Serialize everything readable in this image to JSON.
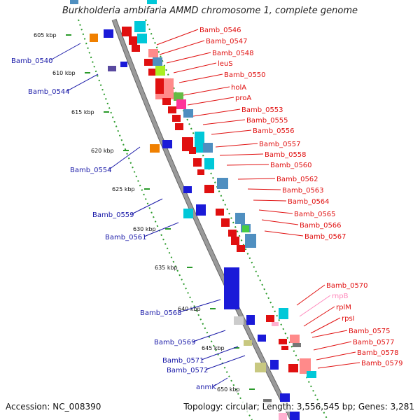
{
  "title": "Burkholderia ambifaria AMMD chromosome 1, complete genome",
  "footer": {
    "accession": "Accession: NC_008390",
    "summary": "Topology: circular; Length: 3,556,545 bp; Genes: 3,281"
  },
  "colors": {
    "left_label": "#1a1aa8",
    "right_label": "#e01010",
    "rnpB_label": "#ff88bb",
    "backbone": "#9a9a9a",
    "track_dots": "#2a9a2a"
  },
  "scale_ticks": [
    {
      "label": "605 kbp",
      "kbp": 605
    },
    {
      "label": "610 kbp",
      "kbp": 610
    },
    {
      "label": "615 kbp",
      "kbp": 615
    },
    {
      "label": "620 kbp",
      "kbp": 620
    },
    {
      "label": "625 kbp",
      "kbp": 625
    },
    {
      "label": "630 kbp",
      "kbp": 630
    },
    {
      "label": "635 kbp",
      "kbp": 635
    },
    {
      "label": "640 kbp",
      "kbp": 640
    },
    {
      "label": "645 kbp",
      "kbp": 645
    },
    {
      "label": "650 kbp",
      "kbp": 650
    }
  ],
  "left_labels": [
    "Bamb_0540",
    "Bamb_0544",
    "Bamb_0554",
    "Bamb_0559",
    "Bamb_0561",
    "Bamb_0568",
    "Bamb_0569",
    "Bamb_0571",
    "Bamb_0572",
    "anmK"
  ],
  "right_labels": [
    "Bamb_0546",
    "Bamb_0547",
    "Bamb_0548",
    "leuS",
    "Bamb_0550",
    "holA",
    "proA",
    "Bamb_0553",
    "Bamb_0555",
    "Bamb_0556",
    "Bamb_0557",
    "Bamb_0558",
    "Bamb_0560",
    "Bamb_0562",
    "Bamb_0563",
    "Bamb_0564",
    "Bamb_0565",
    "Bamb_0566",
    "Bamb_0567",
    "Bamb_0570",
    "rnpB",
    "rplM",
    "rpsI",
    "Bamb_0575",
    "Bamb_0577",
    "Bamb_0578",
    "Bamb_0579"
  ]
}
